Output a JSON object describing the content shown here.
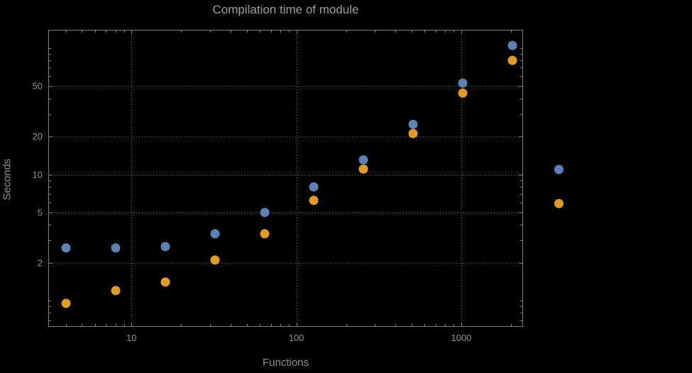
{
  "chart_data": {
    "type": "scatter",
    "title": "Compilation time of module",
    "xlabel": "Functions",
    "ylabel": "Seconds",
    "x_scale": "log",
    "y_scale": "log",
    "xlim": [
      3.13,
      2370
    ],
    "ylim": [
      0.62,
      140
    ],
    "grid": true,
    "x_ticks": [
      10,
      100,
      1000
    ],
    "x_tick_labels": [
      "10",
      "100",
      "1000"
    ],
    "y_ticks": [
      2,
      5,
      10,
      20,
      50
    ],
    "y_tick_labels": [
      "2",
      "5",
      "10",
      "20",
      "50"
    ],
    "series": [
      {
        "name": "series-1-blue",
        "color": "#5e81b5",
        "points": [
          [
            4,
            2.6
          ],
          [
            8,
            2.6
          ],
          [
            16,
            2.7
          ],
          [
            32,
            3.4
          ],
          [
            64,
            5.0
          ],
          [
            128,
            8.0
          ],
          [
            256,
            13
          ],
          [
            512,
            25
          ],
          [
            1024,
            53
          ],
          [
            2048,
            105
          ]
        ]
      },
      {
        "name": "series-2-orange",
        "color": "#e19c24",
        "points": [
          [
            4,
            0.95
          ],
          [
            8,
            1.2
          ],
          [
            16,
            1.4
          ],
          [
            32,
            2.1
          ],
          [
            64,
            3.4
          ],
          [
            128,
            6.2
          ],
          [
            256,
            11
          ],
          [
            512,
            21
          ],
          [
            1024,
            44
          ],
          [
            2048,
            80
          ]
        ]
      }
    ],
    "legend": {
      "position": "right-of-plot",
      "entries": [
        {
          "series": "series-1-blue",
          "color": "#5e81b5"
        },
        {
          "series": "series-2-orange",
          "color": "#e19c24"
        }
      ]
    }
  },
  "colors": {
    "background": "#000000",
    "frame": "#7f7f7f",
    "gridline": "#6e6e6e",
    "text": "#8f8f8f",
    "title_text": "#9c9c9c"
  }
}
